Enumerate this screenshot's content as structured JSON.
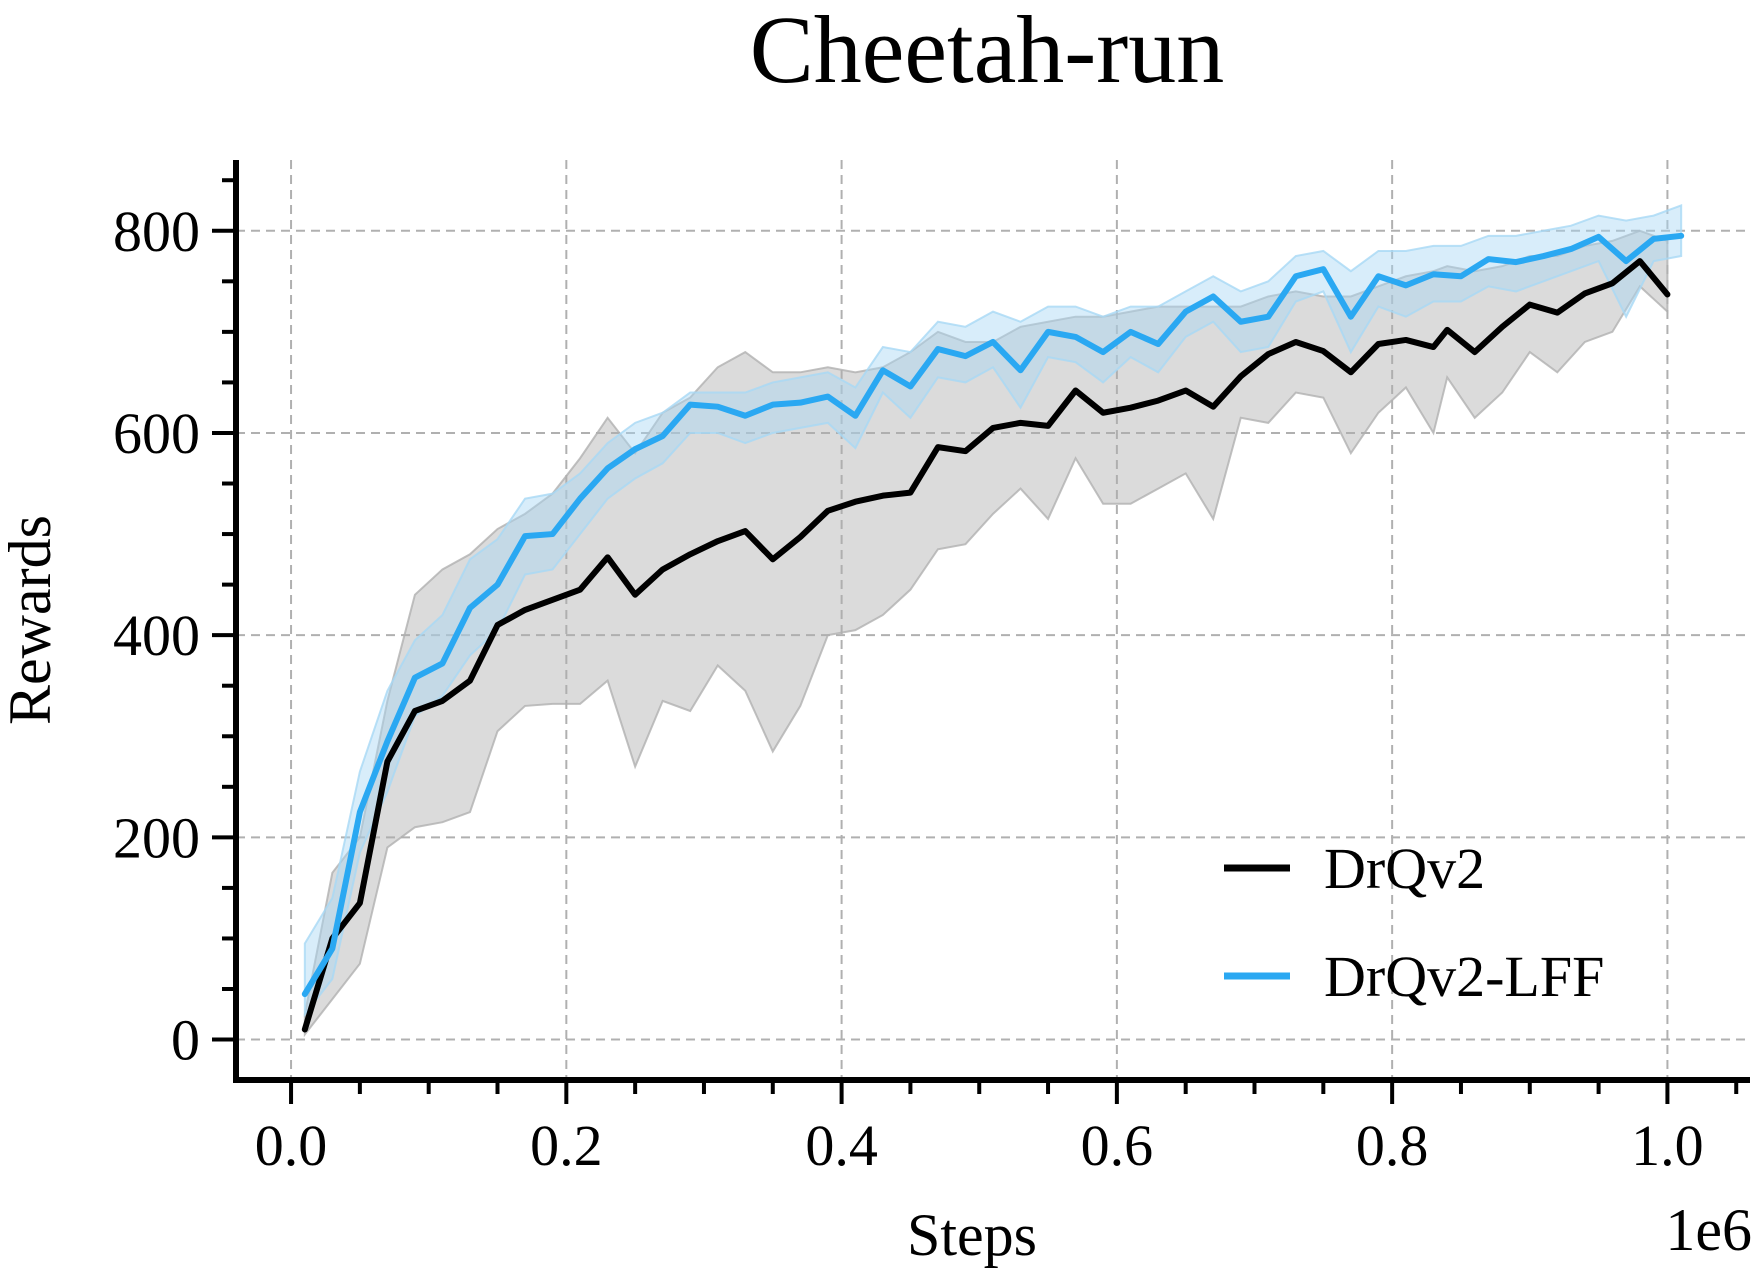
{
  "chart_data": {
    "type": "line",
    "title": "Cheetah-run",
    "xlabel": "Steps",
    "ylabel": "Rewards",
    "x_offset_label": "1e6",
    "xlim": [
      -0.04,
      1.06
    ],
    "ylim": [
      -40,
      870
    ],
    "xticks": [
      0.0,
      0.2,
      0.4,
      0.6,
      0.8,
      1.0
    ],
    "xtick_labels": [
      "0.0",
      "0.2",
      "0.4",
      "0.6",
      "0.8",
      "1.0"
    ],
    "yticks": [
      0,
      200,
      400,
      600,
      800
    ],
    "ytick_labels": [
      "0",
      "200",
      "400",
      "600",
      "800"
    ],
    "grid": true,
    "legend_position": "lower-right",
    "series": [
      {
        "name": "DrQv2",
        "color": "#000000",
        "band_color": "#b0b0b0",
        "x": [
          0.01,
          0.03,
          0.05,
          0.07,
          0.09,
          0.11,
          0.13,
          0.15,
          0.17,
          0.19,
          0.21,
          0.23,
          0.25,
          0.27,
          0.29,
          0.31,
          0.33,
          0.35,
          0.37,
          0.39,
          0.41,
          0.43,
          0.45,
          0.47,
          0.49,
          0.51,
          0.53,
          0.55,
          0.57,
          0.59,
          0.61,
          0.63,
          0.65,
          0.67,
          0.69,
          0.71,
          0.73,
          0.75,
          0.77,
          0.79,
          0.81,
          0.83,
          0.84,
          0.86,
          0.88,
          0.9,
          0.92,
          0.94,
          0.96,
          0.98,
          1.0
        ],
        "y": [
          10,
          100,
          135,
          275,
          325,
          335,
          355,
          410,
          425,
          435,
          445,
          477,
          440,
          465,
          480,
          493,
          503,
          475,
          497,
          523,
          532,
          538,
          541,
          586,
          582,
          605,
          610,
          607,
          642,
          620,
          625,
          632,
          642,
          626,
          656,
          678,
          690,
          681,
          660,
          688,
          692,
          685,
          702,
          680,
          705,
          727,
          719,
          738,
          748,
          770,
          737
        ],
        "upper": [
          25,
          165,
          200,
          335,
          440,
          465,
          480,
          505,
          520,
          540,
          575,
          615,
          580,
          620,
          635,
          665,
          680,
          660,
          660,
          665,
          660,
          665,
          680,
          700,
          690,
          690,
          705,
          710,
          715,
          715,
          720,
          725,
          725,
          725,
          725,
          735,
          740,
          735,
          735,
          745,
          755,
          760,
          765,
          760,
          765,
          775,
          775,
          785,
          790,
          800,
          790
        ],
        "lower": [
          5,
          40,
          75,
          190,
          210,
          215,
          225,
          305,
          330,
          332,
          332,
          355,
          270,
          335,
          325,
          370,
          345,
          285,
          330,
          400,
          405,
          420,
          445,
          485,
          490,
          520,
          545,
          515,
          575,
          530,
          530,
          545,
          560,
          515,
          615,
          610,
          640,
          635,
          580,
          620,
          645,
          600,
          655,
          615,
          640,
          680,
          660,
          690,
          700,
          745,
          720
        ]
      },
      {
        "name": "DrQv2-LFF",
        "color": "#2aa8f2",
        "band_color": "#a8d8f5",
        "x": [
          0.01,
          0.03,
          0.05,
          0.07,
          0.09,
          0.11,
          0.13,
          0.15,
          0.17,
          0.19,
          0.21,
          0.23,
          0.25,
          0.27,
          0.29,
          0.31,
          0.33,
          0.35,
          0.37,
          0.39,
          0.41,
          0.43,
          0.45,
          0.47,
          0.49,
          0.51,
          0.53,
          0.55,
          0.57,
          0.59,
          0.61,
          0.63,
          0.65,
          0.67,
          0.69,
          0.71,
          0.73,
          0.75,
          0.77,
          0.79,
          0.81,
          0.83,
          0.85,
          0.87,
          0.89,
          0.91,
          0.93,
          0.95,
          0.97,
          0.99,
          1.01
        ],
        "y": [
          45,
          90,
          225,
          295,
          358,
          372,
          427,
          450,
          498,
          500,
          535,
          565,
          584,
          597,
          628,
          626,
          617,
          628,
          630,
          636,
          617,
          662,
          646,
          683,
          676,
          690,
          662,
          700,
          695,
          680,
          700,
          688,
          720,
          735,
          710,
          715,
          755,
          762,
          715,
          755,
          746,
          757,
          755,
          772,
          769,
          775,
          782,
          794,
          770,
          792,
          795
        ],
        "upper": [
          95,
          140,
          265,
          345,
          395,
          420,
          475,
          495,
          535,
          540,
          560,
          590,
          610,
          620,
          640,
          640,
          640,
          650,
          655,
          660,
          645,
          685,
          680,
          710,
          705,
          720,
          710,
          725,
          725,
          715,
          725,
          725,
          740,
          755,
          740,
          750,
          775,
          780,
          760,
          780,
          780,
          785,
          785,
          795,
          795,
          800,
          805,
          815,
          810,
          815,
          825
        ],
        "lower": [
          25,
          60,
          185,
          245,
          320,
          340,
          380,
          405,
          460,
          465,
          500,
          535,
          555,
          570,
          600,
          600,
          590,
          600,
          605,
          610,
          585,
          640,
          615,
          655,
          650,
          665,
          625,
          675,
          670,
          650,
          675,
          660,
          695,
          710,
          680,
          685,
          730,
          740,
          680,
          725,
          715,
          730,
          730,
          745,
          740,
          750,
          760,
          770,
          715,
          770,
          775
        ]
      }
    ]
  }
}
